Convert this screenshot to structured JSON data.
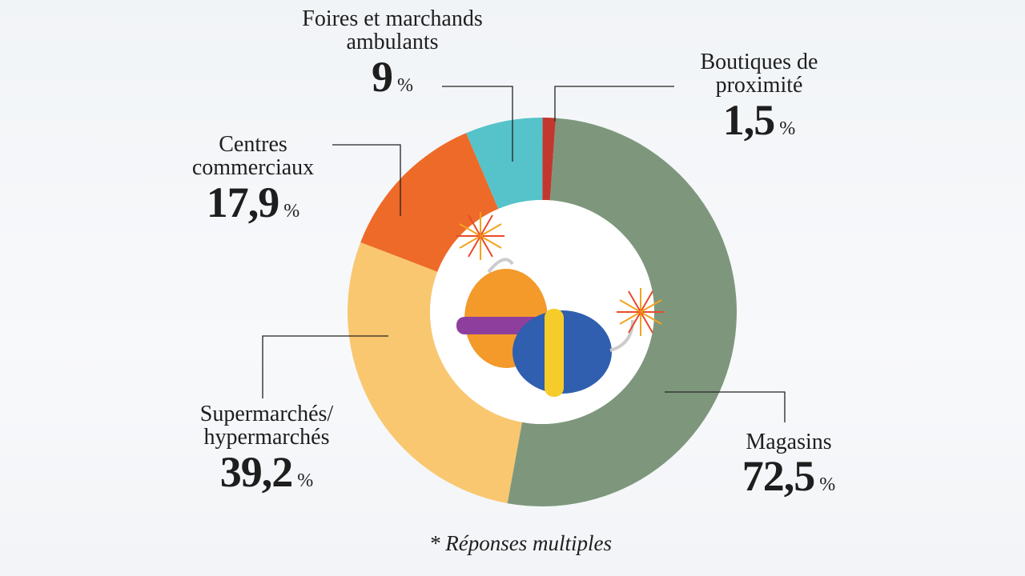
{
  "chart_data": {
    "type": "donut",
    "categories": [
      "Magasins",
      "Supermarchés/ hypermarchés",
      "Centres commerciaux",
      "Foires et marchands ambulants",
      "Boutiques de proximité"
    ],
    "values": [
      72.5,
      39.2,
      17.9,
      9,
      1.5
    ],
    "value_labels": [
      "72,5",
      "39,2",
      "17,9",
      "9",
      "1,5"
    ],
    "unit": "%",
    "colors": [
      "#7e977c",
      "#f9c76f",
      "#ee6a29",
      "#55c3c9",
      "#c2382e"
    ],
    "footnote": "* Réponses multiples"
  }
}
